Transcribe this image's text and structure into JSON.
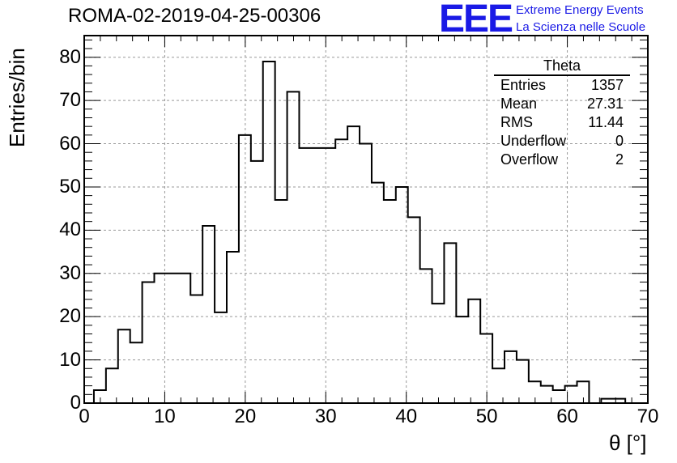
{
  "header": {
    "title": "ROMA-02-2019-04-25-00306",
    "logo_text": "EEE",
    "logo_line1": "Extreme Energy Events",
    "logo_line2": "La Scienza nelle Scuole"
  },
  "stats_box": {
    "title": "Theta",
    "rows": [
      {
        "label": "Entries",
        "value": "1357"
      },
      {
        "label": "Mean",
        "value": "27.31"
      },
      {
        "label": "RMS",
        "value": "11.44"
      },
      {
        "label": "Underflow",
        "value": "0"
      },
      {
        "label": "Overflow",
        "value": "2"
      }
    ]
  },
  "chart_data": {
    "type": "bar",
    "title": "ROMA-02-2019-04-25-00306",
    "xlabel": "θ [°]",
    "ylabel": "Entries/bin",
    "xlim": [
      0,
      70
    ],
    "ylim": [
      0,
      85
    ],
    "bin_width": 1.5,
    "x_start": 1.2,
    "xticks": [
      0,
      10,
      20,
      30,
      40,
      50,
      60,
      70
    ],
    "yticks": [
      0,
      10,
      20,
      30,
      40,
      50,
      60,
      70,
      80
    ],
    "grid": true,
    "values": [
      3,
      8,
      17,
      14,
      28,
      30,
      30,
      30,
      25,
      41,
      21,
      35,
      62,
      56,
      79,
      47,
      72,
      59,
      59,
      59,
      61,
      64,
      60,
      51,
      47,
      50,
      43,
      31,
      23,
      37,
      20,
      24,
      16,
      8,
      12,
      10,
      5,
      4,
      3,
      4,
      5,
      0,
      1,
      1,
      0
    ]
  }
}
